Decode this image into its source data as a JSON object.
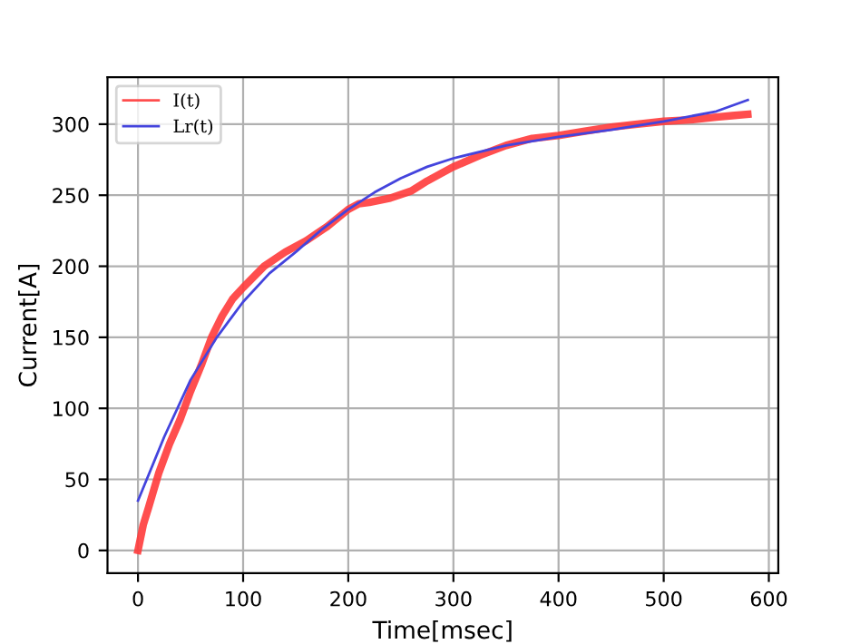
{
  "chart_data": {
    "type": "line",
    "xlabel": "Time[msec]",
    "ylabel": "Current[A]",
    "xlim": [
      -29,
      609
    ],
    "ylim": [
      -16,
      333
    ],
    "xticks": [
      0,
      100,
      200,
      300,
      400,
      500,
      600
    ],
    "yticks": [
      0,
      50,
      100,
      150,
      200,
      250,
      300
    ],
    "grid": true,
    "legend": "top left",
    "line_style": "solid",
    "marker": "none",
    "series": [
      {
        "name": "I(t)",
        "color": "#ff3b3b",
        "x": [
          0,
          5,
          10,
          20,
          30,
          40,
          50,
          60,
          70,
          80,
          90,
          100,
          120,
          140,
          160,
          180,
          200,
          210,
          220,
          240,
          260,
          275,
          290,
          300,
          325,
          350,
          375,
          400,
          425,
          450,
          475,
          500,
          525,
          550,
          565,
          580
        ],
        "values": [
          0,
          18,
          30,
          55,
          75,
          92,
          112,
          130,
          150,
          165,
          177,
          185,
          200,
          210,
          218,
          228,
          240,
          244,
          245,
          248,
          253,
          260,
          266,
          270,
          278,
          285,
          290,
          292,
          295,
          298,
          300,
          302,
          303,
          305,
          306,
          307
        ]
      },
      {
        "name": "Lr(t)",
        "color": "#4444dd",
        "x": [
          0,
          25,
          50,
          75,
          100,
          125,
          150,
          175,
          200,
          225,
          250,
          275,
          300,
          350,
          400,
          450,
          500,
          550,
          580
        ],
        "values": [
          35,
          80,
          120,
          150,
          175,
          195,
          210,
          226,
          240,
          252,
          262,
          270,
          276,
          285,
          291,
          296,
          302,
          309,
          317
        ]
      }
    ]
  }
}
